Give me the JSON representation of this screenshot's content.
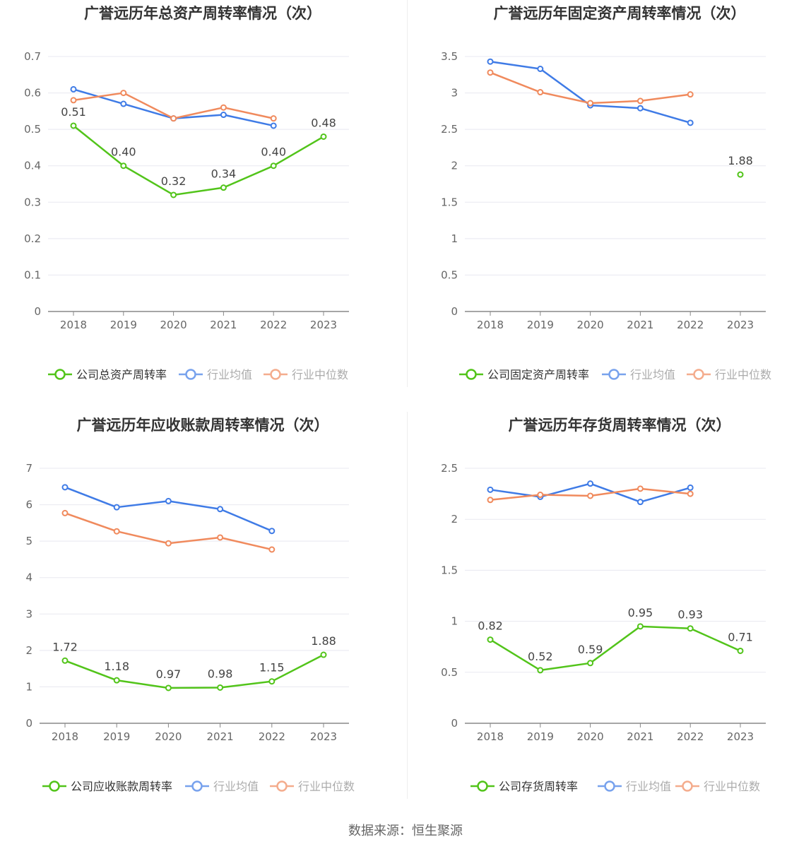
{
  "source": "数据来源：恒生聚源",
  "colors": {
    "company": "#52c41a",
    "avg": "#3f7be6",
    "median": "#f08a5d",
    "grid": "#e8e8f0",
    "axis": "#888888",
    "text": "#666666",
    "title": "#333333"
  },
  "chart_data": [
    {
      "type": "line",
      "title": "广誉远历年总资产周转率情况（次）",
      "categories": [
        "2018",
        "2019",
        "2020",
        "2021",
        "2022",
        "2023"
      ],
      "ylim": [
        0,
        0.7
      ],
      "yticks": [
        0,
        0.1,
        0.2,
        0.3,
        0.4,
        0.5,
        0.6,
        0.7
      ],
      "ytick_labels": [
        "0",
        "0.1",
        "0.2",
        "0.3",
        "0.4",
        "0.5",
        "0.6",
        "0.7"
      ],
      "grid": true,
      "legend_position": "bottom",
      "series": [
        {
          "name": "公司总资产周转率",
          "role": "company",
          "values": [
            0.51,
            0.4,
            0.32,
            0.34,
            0.4,
            0.48
          ],
          "labels": [
            "0.51",
            "0.40",
            "0.32",
            "0.34",
            "0.40",
            "0.48"
          ]
        },
        {
          "name": "行业均值",
          "role": "avg",
          "values": [
            0.61,
            0.57,
            0.53,
            0.54,
            0.51,
            null
          ]
        },
        {
          "name": "行业中位数",
          "role": "median",
          "values": [
            0.58,
            0.6,
            0.53,
            0.56,
            0.53,
            null
          ]
        }
      ]
    },
    {
      "type": "line",
      "title": "广誉远历年固定资产周转率情况（次）",
      "categories": [
        "2018",
        "2019",
        "2020",
        "2021",
        "2022",
        "2023"
      ],
      "ylim": [
        0,
        3.5
      ],
      "yticks": [
        0,
        0.5,
        1,
        1.5,
        2,
        2.5,
        3,
        3.5
      ],
      "ytick_labels": [
        "0",
        "0.5",
        "1",
        "1.5",
        "2",
        "2.5",
        "3",
        "3.5"
      ],
      "grid": true,
      "legend_position": "bottom",
      "series": [
        {
          "name": "公司固定资产周转率",
          "role": "company",
          "values": [
            null,
            null,
            null,
            null,
            null,
            1.88
          ],
          "labels": [
            null,
            null,
            null,
            null,
            null,
            "1.88"
          ]
        },
        {
          "name": "行业均值",
          "role": "avg",
          "values": [
            3.43,
            3.33,
            2.83,
            2.79,
            2.59,
            null
          ]
        },
        {
          "name": "行业中位数",
          "role": "median",
          "values": [
            3.28,
            3.01,
            2.86,
            2.89,
            2.98,
            null
          ]
        }
      ]
    },
    {
      "type": "line",
      "title": "广誉远历年应收账款周转率情况（次）",
      "categories": [
        "2018",
        "2019",
        "2020",
        "2021",
        "2022",
        "2023"
      ],
      "ylim": [
        0,
        7
      ],
      "yticks": [
        0,
        1,
        2,
        3,
        4,
        5,
        6,
        7
      ],
      "ytick_labels": [
        "0",
        "1",
        "2",
        "3",
        "4",
        "5",
        "6",
        "7"
      ],
      "grid": true,
      "legend_position": "bottom",
      "series": [
        {
          "name": "公司应收账款周转率",
          "role": "company",
          "values": [
            1.72,
            1.18,
            0.97,
            0.98,
            1.15,
            1.88
          ],
          "labels": [
            "1.72",
            "1.18",
            "0.97",
            "0.98",
            "1.15",
            "1.88"
          ]
        },
        {
          "name": "行业均值",
          "role": "avg",
          "values": [
            6.48,
            5.93,
            6.1,
            5.88,
            5.28,
            null
          ]
        },
        {
          "name": "行业中位数",
          "role": "median",
          "values": [
            5.77,
            5.27,
            4.94,
            5.1,
            4.77,
            null
          ]
        }
      ]
    },
    {
      "type": "line",
      "title": "广誉远历年存货周转率情况（次）",
      "categories": [
        "2018",
        "2019",
        "2020",
        "2021",
        "2022",
        "2023"
      ],
      "ylim": [
        0,
        2.5
      ],
      "yticks": [
        0,
        0.5,
        1,
        1.5,
        2,
        2.5
      ],
      "ytick_labels": [
        "0",
        "0.5",
        "1",
        "1.5",
        "2",
        "2.5"
      ],
      "grid": true,
      "legend_position": "bottom",
      "series": [
        {
          "name": "公司存货周转率",
          "role": "company",
          "values": [
            0.82,
            0.52,
            0.59,
            0.95,
            0.93,
            0.71
          ],
          "labels": [
            "0.82",
            "0.52",
            "0.59",
            "0.95",
            "0.93",
            "0.71"
          ]
        },
        {
          "name": "行业均值",
          "role": "avg",
          "values": [
            2.29,
            2.22,
            2.35,
            2.17,
            2.31,
            null
          ]
        },
        {
          "name": "行业中位数",
          "role": "median",
          "values": [
            2.19,
            2.24,
            2.23,
            2.3,
            2.25,
            null
          ]
        }
      ]
    }
  ]
}
